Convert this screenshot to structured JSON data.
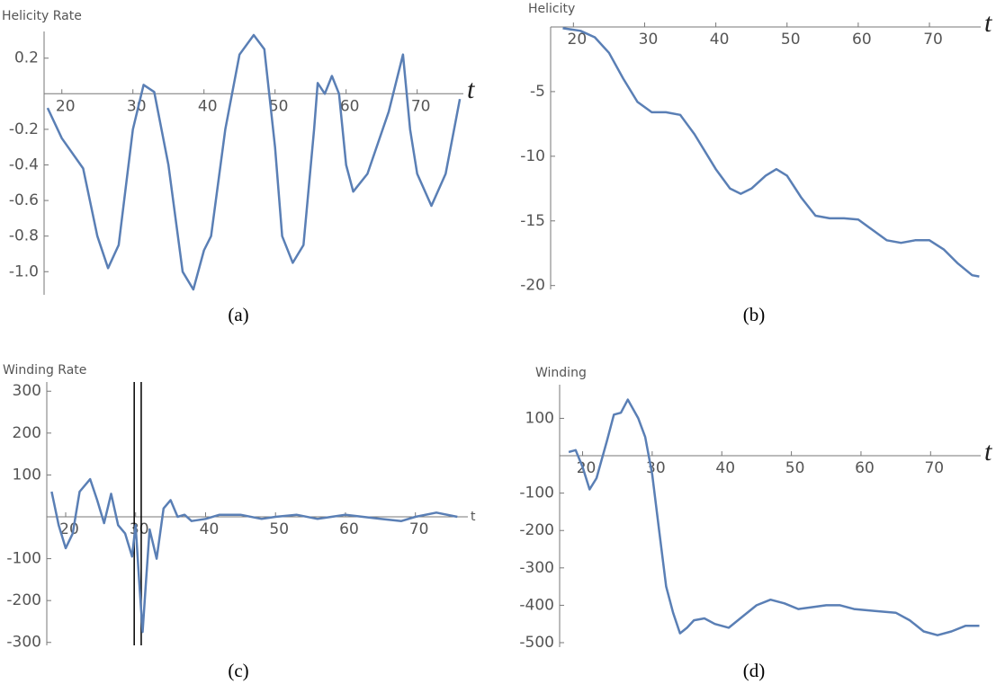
{
  "chart_data": [
    {
      "type": "line",
      "y_label": "Helicity Rate",
      "x_label": "t",
      "caption": "(a)",
      "color": "#5a7fb5",
      "x": [
        18,
        20,
        23,
        25,
        26.5,
        28,
        30,
        31.5,
        33,
        35,
        37,
        38.5,
        40,
        41,
        43,
        45,
        47,
        48.5,
        50,
        51,
        52.5,
        54,
        55.5,
        56,
        57,
        58,
        59,
        60,
        61,
        63,
        66,
        68,
        69,
        70,
        72,
        74,
        76
      ],
      "values": [
        -0.08,
        -0.25,
        -0.42,
        -0.8,
        -0.98,
        -0.85,
        -0.2,
        0.05,
        0.01,
        -0.4,
        -1.0,
        -1.1,
        -0.88,
        -0.8,
        -0.2,
        0.22,
        0.33,
        0.25,
        -0.3,
        -0.8,
        -0.95,
        -0.85,
        -0.2,
        0.06,
        0.0,
        0.1,
        0.0,
        -0.4,
        -0.55,
        -0.45,
        -0.1,
        0.22,
        -0.2,
        -0.45,
        -0.63,
        -0.45,
        -0.03
      ],
      "xlim": [
        17.5,
        76.5
      ],
      "ylim": [
        -1.13,
        0.35
      ],
      "xticks": [
        20,
        30,
        40,
        50,
        60,
        70
      ],
      "yticks": [
        0.2,
        -0.2,
        -0.4,
        -0.6,
        -0.8,
        {
          "value": -1,
          "label": "-1.0"
        }
      ]
    },
    {
      "type": "line",
      "y_label": "Helicity",
      "x_label": "t",
      "caption": "(b)",
      "color": "#5a7fb5",
      "x": [
        18.5,
        21,
        23,
        25,
        27,
        29,
        31,
        33,
        35,
        37,
        40,
        42,
        43.5,
        45,
        47,
        48.5,
        50,
        52,
        54,
        56,
        58,
        60,
        62,
        64,
        66,
        68,
        70,
        72,
        74,
        76,
        77
      ],
      "values": [
        -0.1,
        -0.3,
        -0.8,
        -2,
        -4,
        -5.8,
        -6.6,
        -6.6,
        -6.8,
        -8.3,
        -11,
        -12.5,
        -12.9,
        -12.5,
        -11.5,
        -11,
        -11.5,
        -13.2,
        -14.6,
        -14.8,
        -14.8,
        -14.9,
        -15.7,
        -16.5,
        -16.7,
        -16.5,
        -16.5,
        -17.2,
        -18.3,
        -19.2,
        -19.3
      ],
      "xlim": [
        16.8,
        77.2
      ],
      "ylim": [
        -20.3,
        0
      ],
      "xticks": [
        20,
        30,
        40,
        50,
        60,
        70
      ],
      "yticks": [
        -5,
        -10,
        -15,
        -20
      ]
    },
    {
      "type": "line",
      "y_label": "Winding Rate",
      "x_label": "t",
      "caption": "(c)",
      "color": "#5a7fb5",
      "x": [
        18,
        19,
        20,
        21,
        22,
        23.5,
        24.5,
        25.5,
        26.5,
        27.5,
        28.5,
        29.5,
        30,
        30.5,
        31,
        31.5,
        32,
        33,
        34,
        35,
        36,
        37,
        38,
        40,
        42,
        45,
        48,
        50,
        53,
        56,
        58,
        60,
        65,
        68,
        70,
        73,
        76
      ],
      "values": [
        60,
        -20,
        -75,
        -40,
        60,
        90,
        40,
        -15,
        55,
        -20,
        -40,
        -95,
        -20,
        -150,
        -275,
        -150,
        -30,
        -100,
        20,
        40,
        0,
        5,
        -10,
        -5,
        5,
        5,
        -5,
        0,
        5,
        -5,
        0,
        5,
        -5,
        -10,
        0,
        10,
        0
      ],
      "xlim": [
        17.3,
        77.5
      ],
      "ylim": [
        -307,
        322
      ],
      "xticks": [
        20,
        30,
        40,
        50,
        60,
        70
      ],
      "yticks": [
        300,
        200,
        100,
        -100,
        -200,
        -300
      ],
      "vlines": [
        29.8,
        30.8
      ]
    },
    {
      "type": "line",
      "y_label": "Winding",
      "x_label": "t",
      "caption": "(d)",
      "color": "#5a7fb5",
      "x": [
        18,
        19,
        20,
        21,
        22,
        23.5,
        24.5,
        25.5,
        26.5,
        28,
        29,
        30,
        31,
        32,
        33,
        34,
        35,
        36,
        37.5,
        39,
        41,
        43,
        45,
        47,
        49,
        51,
        53,
        55,
        57,
        59,
        62,
        65,
        67,
        69,
        71,
        73,
        75,
        77
      ],
      "values": [
        10,
        15,
        -30,
        -90,
        -60,
        40,
        110,
        115,
        150,
        100,
        50,
        -50,
        -200,
        -350,
        -420,
        -475,
        -460,
        -440,
        -435,
        -450,
        -460,
        -430,
        -400,
        -385,
        -395,
        -410,
        -405,
        -400,
        -400,
        -410,
        -415,
        -420,
        -440,
        -470,
        -480,
        -470,
        -455,
        -455
      ],
      "xlim": [
        16.7,
        77.2
      ],
      "ylim": [
        -512,
        190
      ],
      "xticks": [
        20,
        30,
        40,
        50,
        60,
        70
      ],
      "yticks": [
        100,
        -100,
        -200,
        -300,
        -400,
        -500
      ]
    }
  ]
}
